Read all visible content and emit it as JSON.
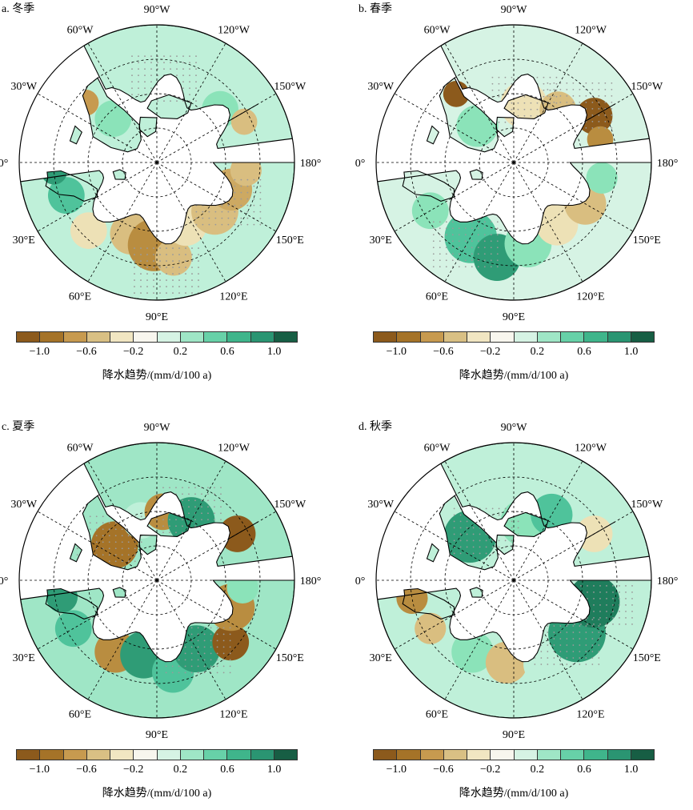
{
  "panels": [
    {
      "id": "a",
      "title": "a. 冬季",
      "colorbar_label": "降水趋势/(mm/d/100 a)",
      "land_base": "#bff0d9",
      "patches": [
        {
          "lon": 60,
          "lat": 78,
          "r": 0.09,
          "c": "#8be3b9"
        },
        {
          "lon": 45,
          "lat": 62,
          "r": 0.07,
          "c": "#ede1b6"
        },
        {
          "lon": 70,
          "lat": 68,
          "r": 0.08,
          "c": "#d9be80"
        },
        {
          "lon": 88,
          "lat": 66,
          "r": 0.1,
          "c": "#b98d40"
        },
        {
          "lon": 100,
          "lat": 62,
          "r": 0.07,
          "c": "#d9be80"
        },
        {
          "lon": 115,
          "lat": 70,
          "r": 0.08,
          "c": "#ede1b6"
        },
        {
          "lon": 140,
          "lat": 68,
          "r": 0.09,
          "c": "#d9be80"
        },
        {
          "lon": 160,
          "lat": 67,
          "r": 0.08,
          "c": "#cda962"
        },
        {
          "lon": 175,
          "lat": 64,
          "r": 0.06,
          "c": "#d9be80"
        },
        {
          "lon": 20,
          "lat": 62,
          "r": 0.07,
          "c": "#4fc39b"
        },
        {
          "lon": 5,
          "lat": 60,
          "r": 0.05,
          "c": "#2f9c76"
        },
        {
          "lon": -45,
          "lat": 72,
          "r": 0.07,
          "c": "#8be3b9"
        },
        {
          "lon": -40,
          "lat": 63,
          "r": 0.05,
          "c": "#c79a4f"
        },
        {
          "lon": -100,
          "lat": 72,
          "r": 0.09,
          "c": "#bff0d9"
        },
        {
          "lon": -140,
          "lat": 66,
          "r": 0.07,
          "c": "#8be3b9"
        },
        {
          "lon": -155,
          "lat": 62,
          "r": 0.05,
          "c": "#d9be80"
        }
      ]
    },
    {
      "id": "b",
      "title": "b. 春季",
      "colorbar_label": "降水趋势/(mm/d/100 a)",
      "land_base": "#d6f3e4",
      "patches": [
        {
          "lon": 60,
          "lat": 65,
          "r": 0.1,
          "c": "#4fc39b"
        },
        {
          "lon": 80,
          "lat": 62,
          "r": 0.09,
          "c": "#2f9c76"
        },
        {
          "lon": 100,
          "lat": 66,
          "r": 0.09,
          "c": "#8be3b9"
        },
        {
          "lon": 125,
          "lat": 68,
          "r": 0.08,
          "c": "#ede1b6"
        },
        {
          "lon": 150,
          "lat": 66,
          "r": 0.08,
          "c": "#d9be80"
        },
        {
          "lon": 170,
          "lat": 64,
          "r": 0.06,
          "c": "#8be3b9"
        },
        {
          "lon": 30,
          "lat": 62,
          "r": 0.07,
          "c": "#8be3b9"
        },
        {
          "lon": -45,
          "lat": 75,
          "r": 0.08,
          "c": "#8be3b9"
        },
        {
          "lon": -50,
          "lat": 64,
          "r": 0.05,
          "c": "#8c5a1c"
        },
        {
          "lon": -100,
          "lat": 73,
          "r": 0.09,
          "c": "#ede1b6"
        },
        {
          "lon": -130,
          "lat": 70,
          "r": 0.07,
          "c": "#d9be80"
        },
        {
          "lon": -150,
          "lat": 63,
          "r": 0.07,
          "c": "#8c5a1c"
        },
        {
          "lon": -165,
          "lat": 64,
          "r": 0.05,
          "c": "#b98d40"
        }
      ]
    },
    {
      "id": "c",
      "title": "c. 夏季",
      "colorbar_label": "降水趋势/(mm/d/100 a)",
      "land_base": "#9fe6c6",
      "patches": [
        {
          "lon": 60,
          "lat": 66,
          "r": 0.08,
          "c": "#b98d40"
        },
        {
          "lon": 80,
          "lat": 68,
          "r": 0.09,
          "c": "#2f9c76"
        },
        {
          "lon": 100,
          "lat": 63,
          "r": 0.08,
          "c": "#4fc39b"
        },
        {
          "lon": 120,
          "lat": 67,
          "r": 0.09,
          "c": "#2f9c76"
        },
        {
          "lon": 140,
          "lat": 62,
          "r": 0.07,
          "c": "#8c5a1c"
        },
        {
          "lon": 160,
          "lat": 67,
          "r": 0.09,
          "c": "#b98d40"
        },
        {
          "lon": 175,
          "lat": 65,
          "r": 0.06,
          "c": "#8be3b9"
        },
        {
          "lon": 30,
          "lat": 62,
          "r": 0.07,
          "c": "#4fc39b"
        },
        {
          "lon": 10,
          "lat": 62,
          "r": 0.06,
          "c": "#2f9c76"
        },
        {
          "lon": -40,
          "lat": 74,
          "r": 0.09,
          "c": "#a57328"
        },
        {
          "lon": -75,
          "lat": 72,
          "r": 0.07,
          "c": "#bff0d9"
        },
        {
          "lon": -95,
          "lat": 70,
          "r": 0.07,
          "c": "#b98d40"
        },
        {
          "lon": -120,
          "lat": 70,
          "r": 0.09,
          "c": "#2f9c76"
        },
        {
          "lon": -150,
          "lat": 63,
          "r": 0.07,
          "c": "#8c5a1c"
        }
      ]
    },
    {
      "id": "d",
      "title": "d. 秋季",
      "colorbar_label": "降水趋势/(mm/d/100 a)",
      "land_base": "#bff0d9",
      "patches": [
        {
          "lon": 60,
          "lat": 66,
          "r": 0.08,
          "c": "#8be3b9"
        },
        {
          "lon": 85,
          "lat": 66,
          "r": 0.08,
          "c": "#d9be80"
        },
        {
          "lon": 110,
          "lat": 64,
          "r": 0.08,
          "c": "#bff0d9"
        },
        {
          "lon": 140,
          "lat": 66,
          "r": 0.11,
          "c": "#2f9c76"
        },
        {
          "lon": 165,
          "lat": 66,
          "r": 0.1,
          "c": "#1f7d5c"
        },
        {
          "lon": 30,
          "lat": 62,
          "r": 0.06,
          "c": "#d9be80"
        },
        {
          "lon": 10,
          "lat": 60,
          "r": 0.06,
          "c": "#b98d40"
        },
        {
          "lon": -45,
          "lat": 72,
          "r": 0.1,
          "c": "#2f9c76"
        },
        {
          "lon": -100,
          "lat": 73,
          "r": 0.09,
          "c": "#8be3b9"
        },
        {
          "lon": -120,
          "lat": 68,
          "r": 0.08,
          "c": "#4fc39b"
        },
        {
          "lon": -150,
          "lat": 63,
          "r": 0.07,
          "c": "#ede1b6"
        }
      ]
    }
  ],
  "lon_labels": [
    {
      "text": "90°W",
      "lon": -90
    },
    {
      "text": "120°W",
      "lon": -120
    },
    {
      "text": "150°W",
      "lon": -150
    },
    {
      "text": "180°",
      "lon": 180
    },
    {
      "text": "150°E",
      "lon": 150
    },
    {
      "text": "120°E",
      "lon": 120
    },
    {
      "text": "90°E",
      "lon": 90
    },
    {
      "text": "60°E",
      "lon": 60
    },
    {
      "text": "30°E",
      "lon": 30
    },
    {
      "text": "0°",
      "lon": 0
    },
    {
      "text": "30°W",
      "lon": -30
    },
    {
      "text": "60°W",
      "lon": -60
    }
  ],
  "colorbar": {
    "colors": [
      "#8c5a1c",
      "#a57328",
      "#c79a4f",
      "#d9c084",
      "#f1e6c2",
      "#f8f6ee",
      "#d6f3e4",
      "#9fe6c6",
      "#67d1a8",
      "#3fb58b",
      "#2a9572",
      "#175e44"
    ],
    "ticks": [
      "−1.0",
      "−0.6",
      "−0.2",
      "0.2",
      "0.6",
      "1.0"
    ]
  },
  "colors": {
    "coast": "#000000",
    "ocean": "#ffffff",
    "stipple": "#9a9a9a"
  }
}
